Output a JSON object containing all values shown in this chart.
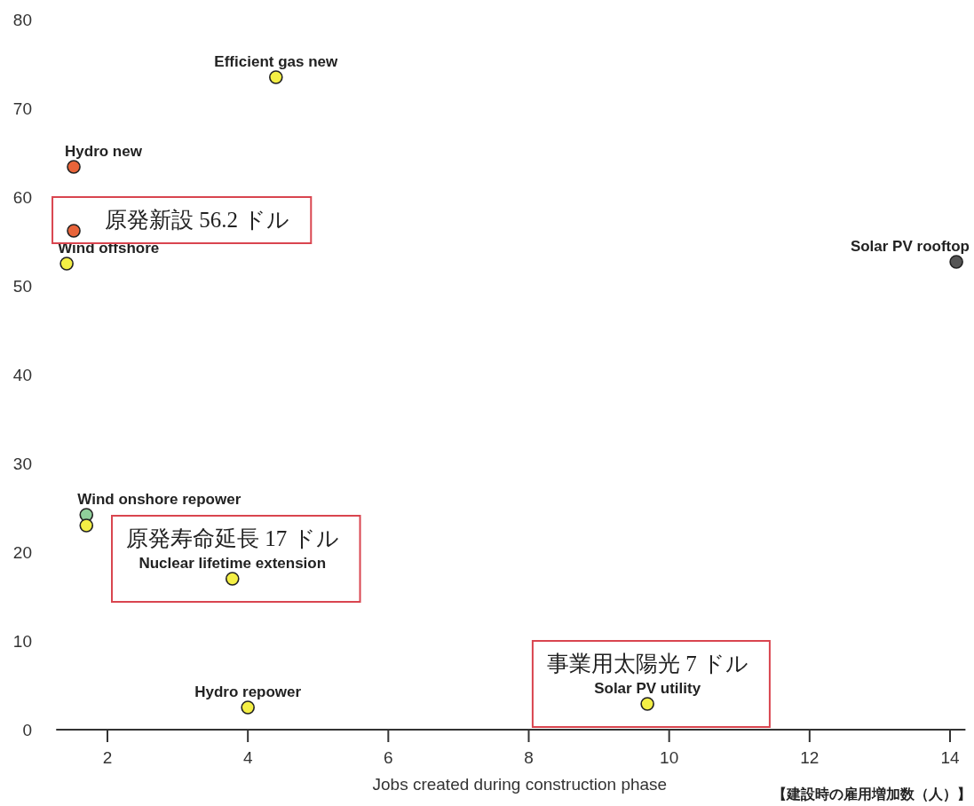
{
  "chart_data": {
    "type": "scatter",
    "xlabel": "Jobs created during construction phase",
    "x": [
      4.4,
      1.52,
      1.52,
      1.42,
      14.09,
      1.7,
      1.7,
      3.78,
      4.0,
      9.69
    ],
    "values": [
      73.5,
      63.4,
      56.2,
      52.5,
      52.7,
      24.2,
      23.0,
      17,
      2.5,
      2.9
    ],
    "colors": [
      "#f4ef45",
      "#e8643a",
      "#e8643a",
      "#f4ef45",
      "#555555",
      "#8fcf9a",
      "#f4ef45",
      "#f4ef45",
      "#f4ef45",
      "#f4ef45"
    ],
    "xlim": [
      1.27,
      14.22
    ],
    "ylim": [
      0,
      80
    ],
    "xticks": [
      2,
      4,
      6,
      8,
      10,
      12,
      14
    ],
    "yticks": [
      0,
      10,
      20,
      30,
      40,
      50,
      60,
      70,
      80
    ],
    "marker": "circle",
    "annotations": [
      {
        "text": "Efficient gas new",
        "x": 4.4,
        "y": 73.5
      },
      {
        "text": "Hydro new",
        "x": 1.52,
        "y": 63.4
      },
      {
        "text": "原発新設 56.2 ドル",
        "x": 1.52,
        "y": 56.2
      },
      {
        "text": "Wind offshore",
        "x": 1.42,
        "y": 52.5
      },
      {
        "text": "Solar PV rooftop",
        "x": 14.09,
        "y": 52.7
      },
      {
        "text": "Wind onshore repower",
        "x": 1.7,
        "y": 24.2
      },
      {
        "text": "Nuclear lifetime extension",
        "x": 3.78,
        "y": 17
      },
      {
        "text": "原発寿命延長 17 ドル",
        "x": 3.78,
        "y": 17
      },
      {
        "text": "Hydro repower",
        "x": 4.0,
        "y": 2.5
      },
      {
        "text": "Solar PV utility",
        "x": 9.69,
        "y": 2.9
      },
      {
        "text": "事業用太陽光 7 ドル",
        "x": 9.69,
        "y": 2.9
      },
      "【建設時の雇用増加数（人）】"
    ]
  }
}
